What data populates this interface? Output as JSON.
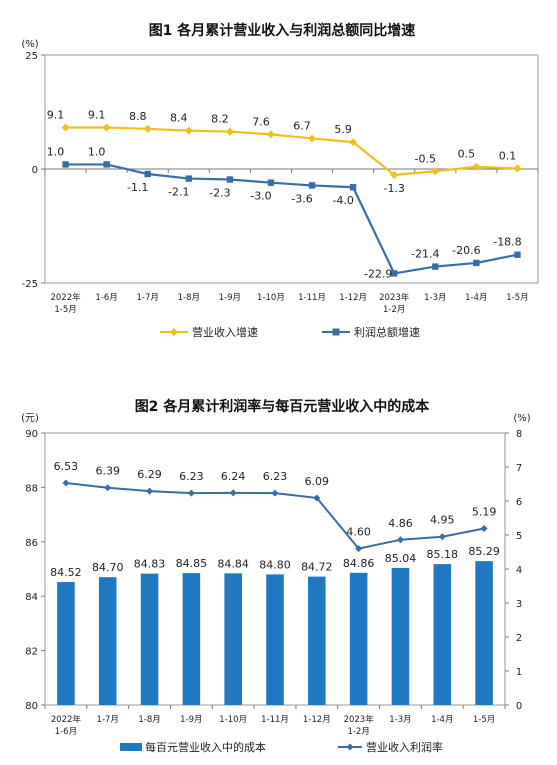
{
  "chart_data": [
    {
      "type": "line",
      "title": "图1  各月累计营业收入与利润总额同比增速",
      "ylabel": "(%)",
      "ylim": [
        -25,
        25
      ],
      "yticks": [
        "25",
        "0",
        "-25"
      ],
      "categories": [
        [
          "2022年",
          "1-5月"
        ],
        [
          "1-6月"
        ],
        [
          "1-7月"
        ],
        [
          "1-8月"
        ],
        [
          "1-9月"
        ],
        [
          "1-10月"
        ],
        [
          "1-11月"
        ],
        [
          "1-12月"
        ],
        [
          "2023年",
          "1-2月"
        ],
        [
          "1-3月"
        ],
        [
          "1-4月"
        ],
        [
          "1-5月"
        ]
      ],
      "series": [
        {
          "name": "营业收入增速",
          "color": "#F0C020",
          "values": [
            9.1,
            9.1,
            8.8,
            8.4,
            8.2,
            7.6,
            6.7,
            5.9,
            -1.3,
            -0.5,
            0.5,
            0.1
          ],
          "labels": [
            "9.1",
            "9.1",
            "8.8",
            "8.4",
            "8.2",
            "7.6",
            "6.7",
            "5.9",
            "-1.3",
            "-0.5",
            "0.5",
            "0.1"
          ]
        },
        {
          "name": "利润总额增速",
          "color": "#3A6DA6",
          "values": [
            1.0,
            1.0,
            -1.1,
            -2.1,
            -2.3,
            -3.0,
            -3.6,
            -4.0,
            -22.9,
            -21.4,
            -20.6,
            -18.8
          ],
          "labels": [
            "1.0",
            "1.0",
            "-1.1",
            "-2.1",
            "-2.3",
            "-3.0",
            "-3.6",
            "-4.0",
            "-22.9",
            "-21.4",
            "-20.6",
            "-18.8"
          ]
        }
      ],
      "legend": "bottom",
      "grid": false
    },
    {
      "type": "bar",
      "title": "图2  各月累计利润率与每百元营业收入中的成本",
      "ylabel": "(元)",
      "y2label": "(%)",
      "ylim": [
        80,
        90
      ],
      "y2lim": [
        0,
        8
      ],
      "yticks": [
        "90",
        "88",
        "86",
        "84",
        "82",
        "80"
      ],
      "y2ticks": [
        "8",
        "7",
        "6",
        "5",
        "4",
        "3",
        "2",
        "1",
        "0"
      ],
      "categories": [
        [
          "2022年",
          "1-6月"
        ],
        [
          "1-7月"
        ],
        [
          "1-8月"
        ],
        [
          "1-9月"
        ],
        [
          "1-10月"
        ],
        [
          "1-11月"
        ],
        [
          "1-12月"
        ],
        [
          "2023年",
          "1-2月"
        ],
        [
          "1-3月"
        ],
        [
          "1-4月"
        ],
        [
          "1-5月"
        ]
      ],
      "series": [
        {
          "name": "每百元营业收入中的成本",
          "kind": "bar",
          "axis": "left",
          "color": "#1F78C1",
          "values": [
            84.52,
            84.7,
            84.83,
            84.85,
            84.84,
            84.8,
            84.72,
            84.86,
            85.04,
            85.18,
            85.29
          ],
          "labels": [
            "84.52",
            "84.70",
            "84.83",
            "84.85",
            "84.84",
            "84.80",
            "84.72",
            "84.86",
            "85.04",
            "85.18",
            "85.29"
          ]
        },
        {
          "name": "营业收入利润率",
          "kind": "line",
          "axis": "right",
          "color": "#3A6DA6",
          "values": [
            6.53,
            6.39,
            6.29,
            6.23,
            6.24,
            6.23,
            6.09,
            4.6,
            4.86,
            4.95,
            5.19
          ],
          "labels": [
            "6.53",
            "6.39",
            "6.29",
            "6.23",
            "6.24",
            "6.23",
            "6.09",
            "4.60",
            "4.86",
            "4.95",
            "5.19"
          ]
        }
      ],
      "legend": "bottom",
      "grid": false
    }
  ]
}
